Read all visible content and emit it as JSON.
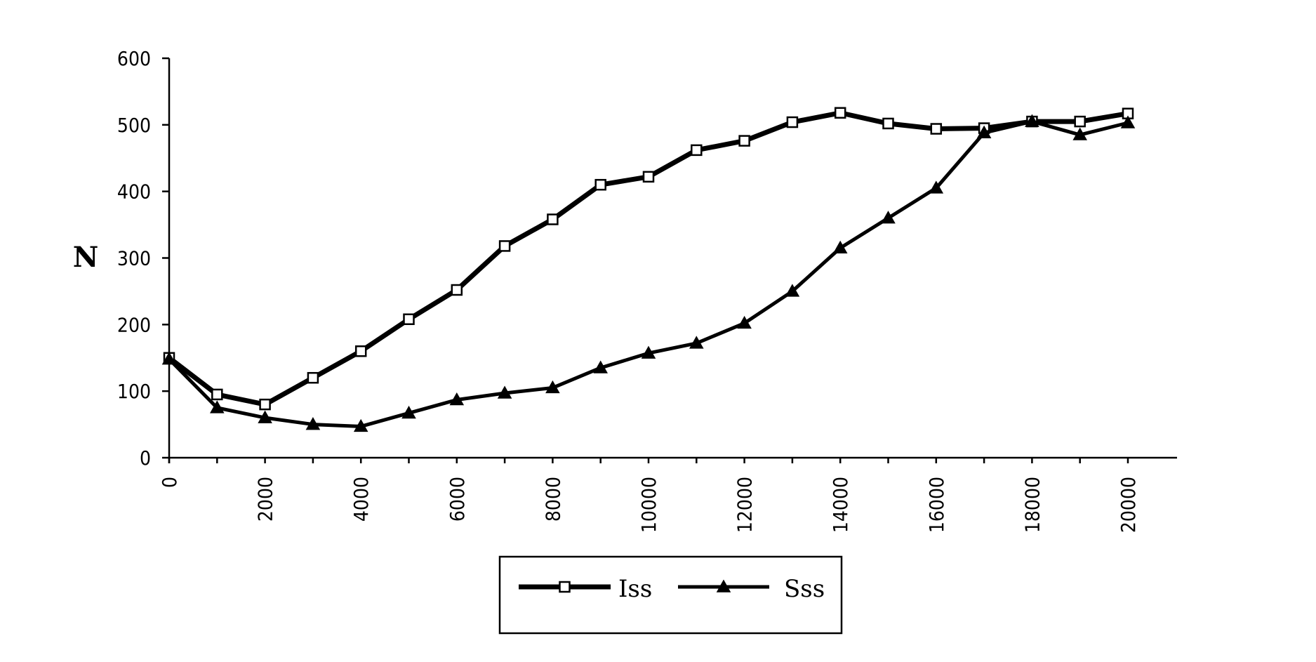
{
  "chart_data": {
    "type": "line",
    "title": "",
    "xlabel": "",
    "ylabel": "N",
    "xlim": [
      0,
      20000
    ],
    "ylim": [
      0,
      600
    ],
    "x_ticks": [
      "0",
      "2000",
      "4000",
      "6000",
      "8000",
      "10000",
      "12000",
      "14000",
      "16000",
      "18000",
      "20000"
    ],
    "y_ticks": [
      "0",
      "100",
      "200",
      "300",
      "400",
      "500",
      "600"
    ],
    "grid": false,
    "legend_position": "bottom-center",
    "x": [
      0,
      1000,
      2000,
      3000,
      4000,
      5000,
      6000,
      7000,
      8000,
      9000,
      10000,
      11000,
      12000,
      13000,
      14000,
      15000,
      16000,
      17000,
      18000,
      19000,
      20000
    ],
    "series": [
      {
        "name": "Iss",
        "marker": "open-square",
        "values": [
          150,
          95,
          80,
          120,
          160,
          208,
          252,
          318,
          358,
          410,
          422,
          462,
          476,
          504,
          518,
          502,
          494,
          495,
          505,
          505,
          517
        ]
      },
      {
        "name": "Sss",
        "marker": "filled-triangle",
        "values": [
          148,
          75,
          60,
          50,
          47,
          67,
          87,
          97,
          105,
          135,
          157,
          172,
          202,
          250,
          315,
          360,
          405,
          488,
          505,
          485,
          503
        ]
      }
    ],
    "colors": {
      "line": "#000000",
      "background": "#ffffff"
    }
  }
}
